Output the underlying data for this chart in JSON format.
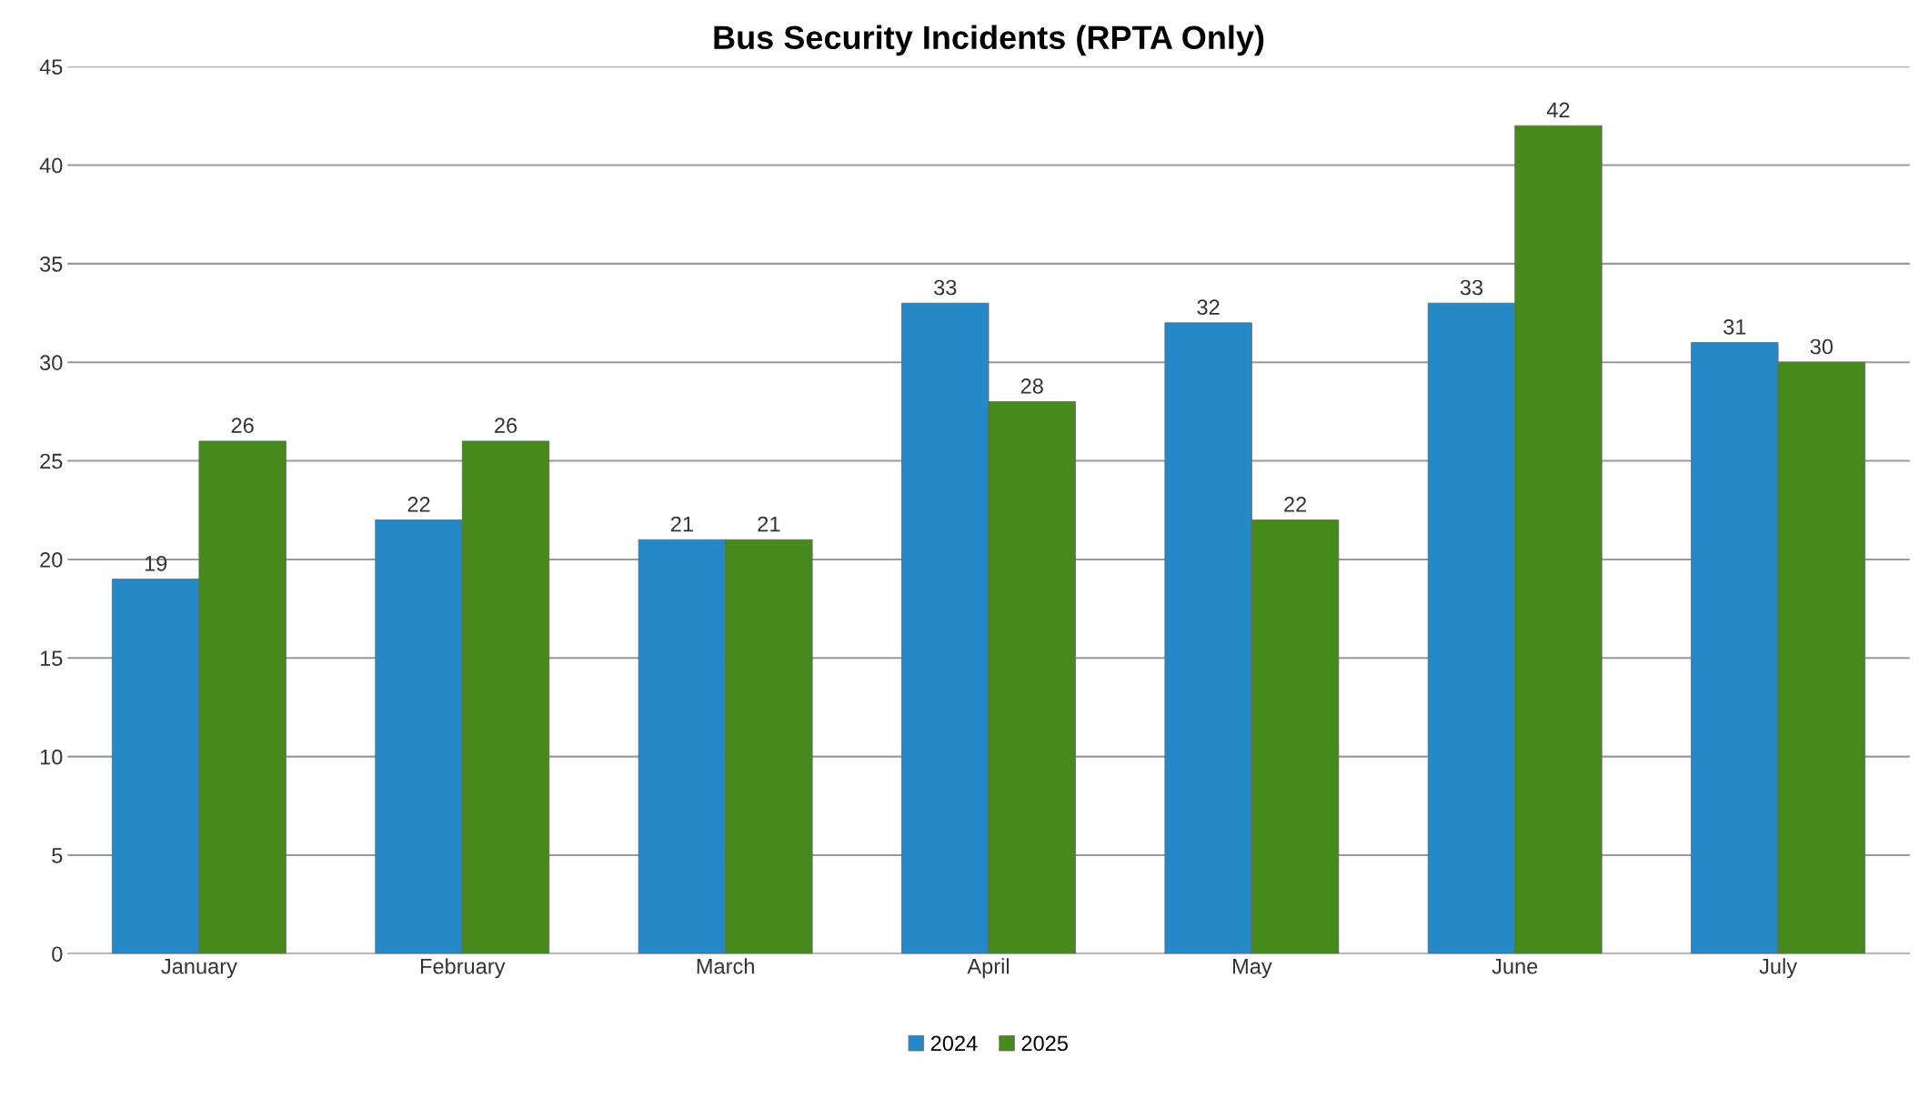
{
  "chart_data": {
    "type": "bar",
    "title": "Bus Security Incidents (RPTA Only)",
    "categories": [
      "January",
      "February",
      "March",
      "April",
      "May",
      "June",
      "July"
    ],
    "series": [
      {
        "name": "2024",
        "color": "#2589c8",
        "values": [
          19,
          22,
          21,
          33,
          32,
          33,
          31
        ]
      },
      {
        "name": "2025",
        "color": "#458a1a",
        "values": [
          26,
          26,
          21,
          28,
          22,
          42,
          30
        ]
      }
    ],
    "ylim": [
      0,
      45
    ],
    "yticks": [
      0,
      5,
      10,
      15,
      20,
      25,
      30,
      35,
      40,
      45
    ],
    "grid": "y",
    "legend": "bottom",
    "data_labels": true
  }
}
